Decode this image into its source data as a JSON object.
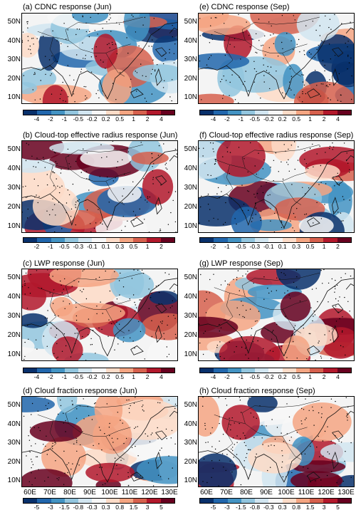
{
  "colors": {
    "diverging": [
      "#08306b",
      "#2166ac",
      "#4393c3",
      "#92c5de",
      "#d1e5f0",
      "#f7f7f7",
      "#fddbc7",
      "#f4a582",
      "#d6604d",
      "#b2182b",
      "#67001f"
    ]
  },
  "lat_ticks": [
    "50N",
    "40N",
    "30N",
    "20N",
    "10N"
  ],
  "lon_ticks": [
    "60E",
    "70E",
    "80E",
    "90E",
    "100E",
    "110E",
    "120E",
    "130E"
  ],
  "chart_data": [
    {
      "type": "heatmap",
      "id": "a",
      "title": "(a) CDNC response (Jun)",
      "colorbar_ticks": [
        "-4",
        "-2",
        "-1",
        "-0.5",
        "-0.2",
        "0.2",
        "0.5",
        "1",
        "2",
        "4"
      ]
    },
    {
      "type": "heatmap",
      "id": "e",
      "title": "(e) CDNC response (Sep)",
      "colorbar_ticks": [
        "-4",
        "-2",
        "-1",
        "-0.5",
        "-0.2",
        "0.2",
        "0.5",
        "1",
        "2",
        "4"
      ]
    },
    {
      "type": "heatmap",
      "id": "b",
      "title": "(b) Cloud-top effective radius response (Jun)",
      "colorbar_ticks": [
        "-2",
        "-1",
        "-0.5",
        "-0.3",
        "-0.1",
        "0.1",
        "0.3",
        "0.5",
        "1",
        "2"
      ]
    },
    {
      "type": "heatmap",
      "id": "f",
      "title": "(f) Cloud-top effective radius response (Sep)",
      "colorbar_ticks": [
        "-2",
        "-1",
        "-0.5",
        "-0.3",
        "-0.1",
        "0.1",
        "0.3",
        "0.5",
        "1",
        "2"
      ]
    },
    {
      "type": "heatmap",
      "id": "c",
      "title": "(c) LWP response (Jun)",
      "colorbar_ticks": [
        "-4",
        "-2",
        "-1",
        "-0.5",
        "-0.2",
        "0.2",
        "0.5",
        "1",
        "2",
        "4"
      ]
    },
    {
      "type": "heatmap",
      "id": "g",
      "title": "(g) LWP response (Sep)",
      "colorbar_ticks": [
        "-4",
        "-2",
        "-1",
        "-0.5",
        "-0.2",
        "0.2",
        "0.5",
        "1",
        "2",
        "4"
      ]
    },
    {
      "type": "heatmap",
      "id": "d",
      "title": "(d) Cloud fraction response (Jun)",
      "colorbar_ticks": [
        "-5",
        "-3",
        "-1.5",
        "-0.8",
        "-0.3",
        "0.3",
        "0.8",
        "1.5",
        "3",
        "5"
      ]
    },
    {
      "type": "heatmap",
      "id": "h",
      "title": "(h) Cloud fraction response (Sep)",
      "colorbar_ticks": [
        "-5",
        "-3",
        "-1.5",
        "-0.8",
        "-0.3",
        "0.3",
        "0.8",
        "1.5",
        "3",
        "5"
      ]
    }
  ]
}
